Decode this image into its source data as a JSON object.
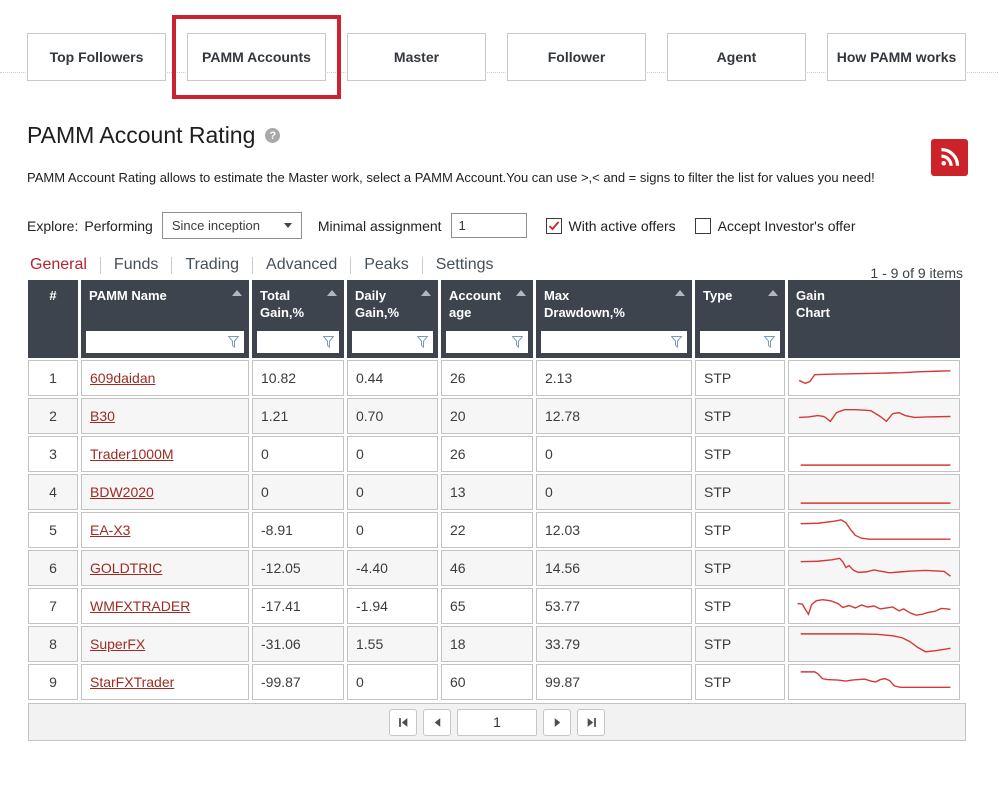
{
  "nav": {
    "buttons": [
      {
        "label": "Top Followers",
        "active": false
      },
      {
        "label": "PAMM Accounts",
        "active": true
      },
      {
        "label": "Master",
        "active": false
      },
      {
        "label": "Follower",
        "active": false
      },
      {
        "label": "Agent",
        "active": false
      },
      {
        "label": "How PAMM works",
        "active": false
      }
    ]
  },
  "header": {
    "title": "PAMM Account Rating",
    "help_icon": "question-mark-icon",
    "rss_icon": "rss-icon",
    "description": "PAMM Account Rating allows to estimate the Master work, select a PAMM Account.You can use >,< and = signs to filter the list for values you need!"
  },
  "filters": {
    "explore_label": "Explore:",
    "performing_label": "Performing",
    "period_select": {
      "value": "Since inception"
    },
    "minimal_assignment_label": "Minimal assignment",
    "minimal_assignment_value": "1",
    "checkboxes": [
      {
        "label": "With active offers",
        "checked": true
      },
      {
        "label": "Accept Investor's offer",
        "checked": false
      }
    ]
  },
  "tabs": [
    {
      "label": "General",
      "active": true
    },
    {
      "label": "Funds",
      "active": false
    },
    {
      "label": "Trading",
      "active": false
    },
    {
      "label": "Advanced",
      "active": false
    },
    {
      "label": "Peaks",
      "active": false
    },
    {
      "label": "Settings",
      "active": false
    }
  ],
  "items_count": "1 - 9 of 9 items",
  "table": {
    "columns": [
      {
        "id": "num",
        "line1": "#",
        "line2": "",
        "sortable": false,
        "filterable": false
      },
      {
        "id": "name",
        "line1": "PAMM Name",
        "line2": "",
        "sortable": true,
        "filterable": true
      },
      {
        "id": "total_gain",
        "line1": "Total",
        "line2": "Gain,%",
        "sortable": true,
        "filterable": true
      },
      {
        "id": "daily_gain",
        "line1": "Daily",
        "line2": "Gain,%",
        "sortable": true,
        "filterable": true
      },
      {
        "id": "account_age",
        "line1": "Account",
        "line2": "age",
        "sortable": true,
        "filterable": true
      },
      {
        "id": "max_drawdown",
        "line1": "Max",
        "line2": "Drawdown,%",
        "sortable": true,
        "filterable": true
      },
      {
        "id": "type",
        "line1": "Type",
        "line2": "",
        "sortable": true,
        "filterable": true
      },
      {
        "id": "gain_chart",
        "line1": "Gain",
        "line2": "Chart",
        "sortable": false,
        "filterable": false
      }
    ],
    "rows": [
      {
        "num": "1",
        "name": "609daidan",
        "total_gain": "10.82",
        "daily_gain": "0.44",
        "account_age": "26",
        "max_drawdown": "2.13",
        "type": "STP",
        "spark": [
          [
            2,
            17
          ],
          [
            6,
            20
          ],
          [
            9,
            18
          ],
          [
            12,
            11
          ],
          [
            22,
            10.5
          ],
          [
            38,
            10
          ],
          [
            55,
            9.5
          ],
          [
            68,
            9
          ],
          [
            80,
            8
          ],
          [
            90,
            7.5
          ],
          [
            99,
            7
          ]
        ]
      },
      {
        "num": "2",
        "name": "B30",
        "total_gain": "1.21",
        "daily_gain": "0.70",
        "account_age": "20",
        "max_drawdown": "12.78",
        "type": "STP",
        "spark": [
          [
            2,
            16
          ],
          [
            8,
            15.5
          ],
          [
            14,
            14
          ],
          [
            18,
            15
          ],
          [
            22,
            20
          ],
          [
            26,
            11
          ],
          [
            31,
            8
          ],
          [
            38,
            8
          ],
          [
            44,
            8.5
          ],
          [
            48,
            9
          ],
          [
            54,
            15
          ],
          [
            58,
            20
          ],
          [
            62,
            12
          ],
          [
            66,
            11
          ],
          [
            70,
            14
          ],
          [
            76,
            16
          ],
          [
            84,
            15.5
          ],
          [
            99,
            15
          ]
        ]
      },
      {
        "num": "3",
        "name": "Trader1000M",
        "total_gain": "0",
        "daily_gain": "0",
        "account_age": "26",
        "max_drawdown": "0",
        "type": "STP",
        "spark": [
          [
            3,
            26
          ],
          [
            99,
            26
          ]
        ]
      },
      {
        "num": "4",
        "name": "BDW2020",
        "total_gain": "0",
        "daily_gain": "0",
        "account_age": "13",
        "max_drawdown": "0",
        "type": "STP",
        "spark": [
          [
            3,
            26
          ],
          [
            99,
            26
          ]
        ]
      },
      {
        "num": "5",
        "name": "EA-X3",
        "total_gain": "-8.91",
        "daily_gain": "0",
        "account_age": "22",
        "max_drawdown": "12.03",
        "type": "STP",
        "spark": [
          [
            3,
            8
          ],
          [
            14,
            7.5
          ],
          [
            24,
            5.5
          ],
          [
            29,
            4
          ],
          [
            32,
            7
          ],
          [
            35,
            14
          ],
          [
            38,
            20
          ],
          [
            42,
            23
          ],
          [
            47,
            24
          ],
          [
            99,
            24
          ]
        ]
      },
      {
        "num": "6",
        "name": "GOLDTRIC",
        "total_gain": "-12.05",
        "daily_gain": "-4.40",
        "account_age": "46",
        "max_drawdown": "14.56",
        "type": "STP",
        "spark": [
          [
            3,
            8
          ],
          [
            14,
            7.5
          ],
          [
            23,
            6
          ],
          [
            28,
            4.5
          ],
          [
            30,
            8
          ],
          [
            32,
            14
          ],
          [
            34,
            12
          ],
          [
            37,
            17
          ],
          [
            40,
            19
          ],
          [
            45,
            18.5
          ],
          [
            50,
            16.5
          ],
          [
            55,
            18
          ],
          [
            60,
            19.5
          ],
          [
            67,
            18.5
          ],
          [
            75,
            17.5
          ],
          [
            83,
            17
          ],
          [
            90,
            17.5
          ],
          [
            95,
            18
          ],
          [
            99,
            23
          ]
        ]
      },
      {
        "num": "7",
        "name": "WMFXTRADER",
        "total_gain": "-17.41",
        "daily_gain": "-1.94",
        "account_age": "65",
        "max_drawdown": "53.77",
        "type": "STP",
        "spark": [
          [
            1,
            12
          ],
          [
            4,
            12.5
          ],
          [
            6,
            18
          ],
          [
            8,
            23
          ],
          [
            10,
            13
          ],
          [
            13,
            9
          ],
          [
            17,
            8
          ],
          [
            22,
            9
          ],
          [
            27,
            12
          ],
          [
            30,
            16
          ],
          [
            34,
            14
          ],
          [
            38,
            16.5
          ],
          [
            42,
            13.5
          ],
          [
            46,
            15.5
          ],
          [
            50,
            14.5
          ],
          [
            54,
            17.5
          ],
          [
            58,
            16.5
          ],
          [
            62,
            15.5
          ],
          [
            66,
            19.5
          ],
          [
            69,
            17.5
          ],
          [
            73,
            21.5
          ],
          [
            77,
            24
          ],
          [
            81,
            23
          ],
          [
            85,
            21
          ],
          [
            89,
            20
          ],
          [
            93,
            17
          ],
          [
            97,
            17.5
          ],
          [
            99,
            18
          ]
        ]
      },
      {
        "num": "8",
        "name": "SuperFX",
        "total_gain": "-31.06",
        "daily_gain": "1.55",
        "account_age": "18",
        "max_drawdown": "33.79",
        "type": "STP",
        "spark": [
          [
            3,
            4
          ],
          [
            40,
            4
          ],
          [
            52,
            4.5
          ],
          [
            62,
            6
          ],
          [
            68,
            8
          ],
          [
            73,
            12
          ],
          [
            78,
            18
          ],
          [
            83,
            22.5
          ],
          [
            89,
            21.5
          ],
          [
            99,
            19
          ]
        ]
      },
      {
        "num": "9",
        "name": "StarFXTrader",
        "total_gain": "-99.87",
        "daily_gain": "0",
        "account_age": "60",
        "max_drawdown": "99.87",
        "type": "STP",
        "spark": [
          [
            3,
            4
          ],
          [
            12,
            4
          ],
          [
            14,
            6
          ],
          [
            17,
            11
          ],
          [
            20,
            12
          ],
          [
            27,
            12.5
          ],
          [
            32,
            13.5
          ],
          [
            36,
            12.5
          ],
          [
            40,
            12
          ],
          [
            44,
            11.5
          ],
          [
            48,
            13.5
          ],
          [
            51,
            14.5
          ],
          [
            54,
            12
          ],
          [
            57,
            11
          ],
          [
            60,
            13
          ],
          [
            63,
            18.5
          ],
          [
            67,
            20
          ],
          [
            73,
            20
          ],
          [
            99,
            20
          ]
        ]
      }
    ]
  },
  "pagination": {
    "page": "1"
  },
  "colors": {
    "accent_red": "#ce2230",
    "rss_bg": "#cc2229",
    "link": "#9e2b22",
    "header_bg": "#3e444d",
    "spark": "#d43a35",
    "tab_active": "#b5232d",
    "check": "#cc2430"
  }
}
